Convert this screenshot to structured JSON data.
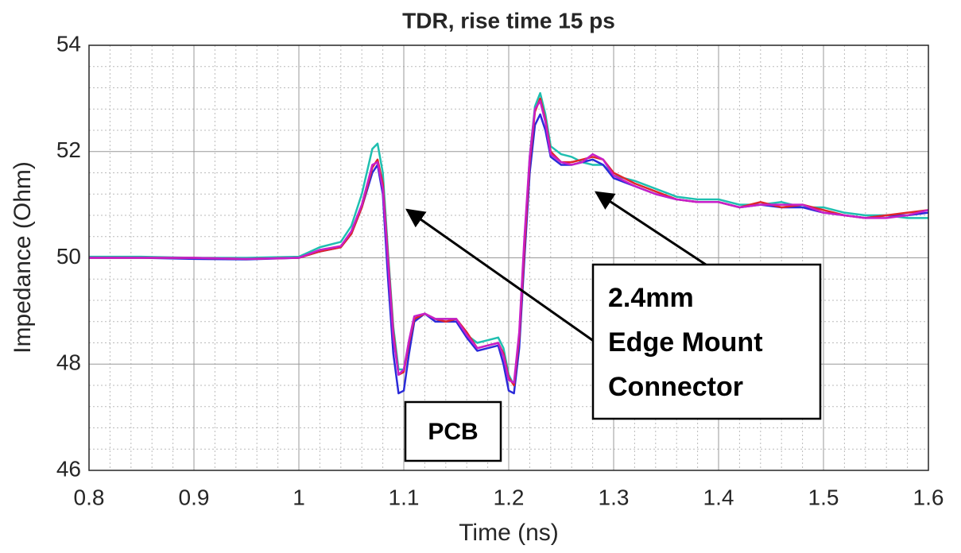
{
  "chart_data": {
    "type": "line",
    "title": "TDR, rise time 15 ps",
    "x_label": "Time (ns)",
    "y_label": "Impedance (Ohm)",
    "x": [
      0.8,
      0.85,
      0.9,
      0.95,
      1.0,
      1.02,
      1.04,
      1.05,
      1.06,
      1.07,
      1.075,
      1.08,
      1.085,
      1.09,
      1.095,
      1.1,
      1.105,
      1.11,
      1.12,
      1.13,
      1.14,
      1.15,
      1.16,
      1.17,
      1.18,
      1.19,
      1.195,
      1.2,
      1.205,
      1.21,
      1.215,
      1.22,
      1.225,
      1.23,
      1.235,
      1.24,
      1.25,
      1.26,
      1.27,
      1.28,
      1.29,
      1.3,
      1.32,
      1.34,
      1.36,
      1.38,
      1.4,
      1.42,
      1.44,
      1.46,
      1.48,
      1.5,
      1.52,
      1.54,
      1.56,
      1.58,
      1.6
    ],
    "series": [
      {
        "color": "#1fbfb0",
        "values": [
          50.02,
          50.02,
          50,
          50,
          50.02,
          50.2,
          50.3,
          50.6,
          51.2,
          52.05,
          52.15,
          51.6,
          50.1,
          48.7,
          47.9,
          47.9,
          48.4,
          48.85,
          48.95,
          48.85,
          48.85,
          48.85,
          48.55,
          48.4,
          48.45,
          48.5,
          48.3,
          47.8,
          47.6,
          48.4,
          50.2,
          51.9,
          52.85,
          53.1,
          52.7,
          52.1,
          51.95,
          51.9,
          51.8,
          51.75,
          51.75,
          51.55,
          51.45,
          51.3,
          51.15,
          51.1,
          51.1,
          51.0,
          51.0,
          51.05,
          50.95,
          50.95,
          50.85,
          50.8,
          50.8,
          50.75,
          50.75
        ]
      },
      {
        "color": "#2b2bd9",
        "values": [
          50,
          50,
          49.98,
          49.97,
          50,
          50.12,
          50.2,
          50.45,
          50.95,
          51.6,
          51.75,
          51.2,
          49.6,
          48.2,
          47.45,
          47.5,
          48.2,
          48.8,
          48.95,
          48.8,
          48.8,
          48.8,
          48.5,
          48.25,
          48.3,
          48.35,
          48.0,
          47.5,
          47.45,
          48.3,
          50.0,
          51.6,
          52.5,
          52.7,
          52.4,
          51.9,
          51.75,
          51.75,
          51.8,
          51.85,
          51.75,
          51.5,
          51.35,
          51.2,
          51.1,
          51.05,
          51.05,
          50.95,
          51.0,
          50.95,
          50.95,
          50.85,
          50.8,
          50.75,
          50.8,
          50.8,
          50.85
        ]
      },
      {
        "color": "#e0262a",
        "values": [
          50,
          50,
          50,
          49.98,
          50,
          50.12,
          50.2,
          50.45,
          50.95,
          51.7,
          51.85,
          51.4,
          50.0,
          48.6,
          47.8,
          47.85,
          48.4,
          48.85,
          48.95,
          48.85,
          48.8,
          48.85,
          48.6,
          48.3,
          48.35,
          48.4,
          48.2,
          47.75,
          47.6,
          48.5,
          50.2,
          51.8,
          52.75,
          53.0,
          52.6,
          52.0,
          51.8,
          51.8,
          51.85,
          51.9,
          51.85,
          51.6,
          51.4,
          51.25,
          51.1,
          51.05,
          51.05,
          50.95,
          51.05,
          50.95,
          51.0,
          50.9,
          50.8,
          50.75,
          50.8,
          50.85,
          50.9
        ]
      },
      {
        "color": "#c81fc8",
        "values": [
          50,
          50,
          50,
          49.98,
          50,
          50.15,
          50.22,
          50.5,
          51.0,
          51.75,
          51.8,
          51.3,
          49.9,
          48.5,
          47.8,
          47.9,
          48.45,
          48.9,
          48.95,
          48.85,
          48.85,
          48.85,
          48.55,
          48.3,
          48.35,
          48.4,
          48.15,
          47.7,
          47.65,
          48.6,
          50.4,
          51.9,
          52.8,
          52.95,
          52.55,
          51.95,
          51.8,
          51.75,
          51.8,
          51.95,
          51.85,
          51.55,
          51.35,
          51.2,
          51.1,
          51.05,
          51.05,
          50.95,
          51.0,
          51.0,
          51.0,
          50.85,
          50.8,
          50.75,
          50.75,
          50.8,
          50.9
        ]
      }
    ],
    "xlim": [
      0.8,
      1.6
    ],
    "xticks": [
      0.8,
      0.9,
      1,
      1.1,
      1.2,
      1.3,
      1.4,
      1.5,
      1.6
    ],
    "ylim": [
      46,
      54
    ],
    "yticks": [
      46,
      48,
      50,
      52,
      54
    ],
    "grid": true,
    "minor_grid": true,
    "annotations": [
      {
        "text": "PCB"
      },
      {
        "lines": [
          "2.4mm",
          "Edge Mount",
          "Connector"
        ]
      }
    ]
  }
}
